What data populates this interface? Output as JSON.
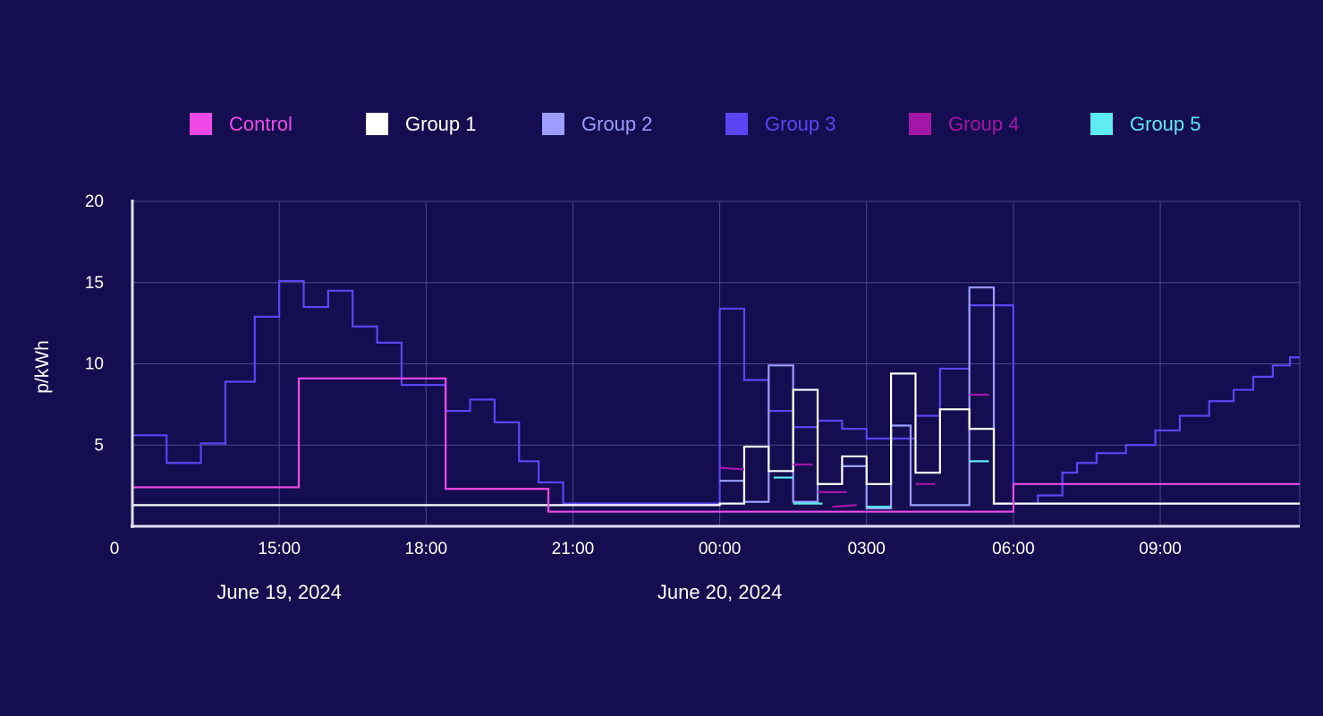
{
  "chart_data": {
    "type": "line",
    "step": true,
    "title": "",
    "xlabel": "",
    "ylabel": "p/kWh",
    "ylim": [
      0,
      20
    ],
    "xlim": [
      12.0,
      35.85
    ],
    "x_unit": "hours since 00:00 June 19, 2024",
    "y_ticks": [
      {
        "value": 0,
        "label": "0"
      },
      {
        "value": 5,
        "label": "5"
      },
      {
        "value": 10,
        "label": "10"
      },
      {
        "value": 15,
        "label": "15"
      },
      {
        "value": 20,
        "label": "20"
      }
    ],
    "x_ticks": [
      {
        "value": 15,
        "label": "15:00"
      },
      {
        "value": 18,
        "label": "18:00"
      },
      {
        "value": 21,
        "label": "21:00"
      },
      {
        "value": 24,
        "label": "00:00"
      },
      {
        "value": 27,
        "label": "0300"
      },
      {
        "value": 30,
        "label": "06:00"
      },
      {
        "value": 33,
        "label": "09:00"
      }
    ],
    "date_labels": [
      {
        "value": 15,
        "label": "June 19, 2024"
      },
      {
        "value": 24,
        "label": "June 20, 2024"
      }
    ],
    "legend_position": "top",
    "series": [
      {
        "name": "Group 3",
        "color": "#5b45f5",
        "x": [
          12.0,
          12.7,
          13.4,
          13.9,
          14.5,
          15.0,
          15.5,
          16.0,
          16.5,
          17.0,
          17.5,
          18.4,
          18.9,
          19.4,
          19.9,
          20.3,
          20.8,
          21.5,
          24.0,
          24.5,
          25.0,
          25.5,
          26.0,
          26.5,
          27.0,
          27.5,
          28.0,
          28.5,
          29.1,
          30.0,
          30.5,
          31.0,
          31.3,
          31.7,
          32.3,
          32.9,
          33.4,
          34.0,
          34.5,
          34.9,
          35.3,
          35.65,
          35.85
        ],
        "y": [
          5.6,
          3.9,
          5.1,
          8.9,
          12.9,
          15.1,
          13.5,
          14.5,
          12.3,
          11.3,
          8.7,
          7.1,
          7.8,
          6.4,
          4.0,
          2.7,
          1.4,
          1.4,
          13.4,
          9.0,
          7.1,
          6.1,
          6.5,
          6.0,
          5.4,
          5.4,
          6.8,
          9.7,
          13.6,
          1.4,
          1.9,
          3.3,
          3.9,
          4.5,
          5.0,
          5.9,
          6.8,
          7.7,
          8.4,
          9.2,
          9.9,
          10.4,
          10.4
        ]
      },
      {
        "name": "Group 2",
        "color": "#9b9dff",
        "x": [
          24.0,
          24.5,
          24.9,
          25.0,
          25.5,
          26.0,
          26.5,
          27.0,
          27.5,
          27.9,
          28.0,
          28.5,
          29.1,
          29.6,
          35.85
        ],
        "y": [
          2.8,
          1.5,
          1.5,
          9.9,
          1.5,
          2.6,
          3.7,
          1.1,
          6.2,
          1.3,
          1.3,
          1.3,
          14.7,
          1.4,
          1.4
        ]
      },
      {
        "name": "Group 1",
        "color": "#ffffff",
        "x": [
          12.0,
          24.0,
          24.5,
          25.0,
          25.5,
          26.0,
          26.5,
          27.0,
          27.5,
          28.0,
          28.5,
          29.1,
          29.6,
          35.85
        ],
        "y": [
          1.3,
          1.4,
          4.9,
          3.4,
          8.4,
          2.6,
          4.3,
          2.6,
          9.4,
          3.3,
          7.2,
          6.0,
          1.4,
          1.4
        ]
      },
      {
        "name": "Group 5",
        "color": "#5cecf2",
        "x": [
          25.1,
          25.5,
          25.5,
          26.1,
          27.0,
          27.5,
          29.1,
          29.5
        ],
        "y": [
          3.0,
          3.0,
          1.4,
          1.4,
          1.2,
          1.2,
          4.0,
          4.0
        ],
        "segments": true
      },
      {
        "name": "Group 4",
        "color": "#a116a7",
        "x": [
          24.0,
          24.5,
          25.5,
          25.9,
          26.0,
          26.6,
          26.3,
          26.8,
          28.0,
          28.4,
          29.1,
          29.5
        ],
        "y": [
          3.6,
          3.5,
          3.8,
          3.8,
          2.1,
          2.1,
          1.2,
          1.3,
          2.6,
          2.6,
          8.1,
          8.1
        ],
        "segments": true
      },
      {
        "name": "Control",
        "color": "#ef4ae8",
        "x": [
          12.0,
          15.4,
          18.4,
          20.5,
          30.0,
          35.85
        ],
        "y": [
          2.4,
          9.1,
          2.3,
          0.9,
          2.6,
          2.6
        ]
      }
    ],
    "legend": [
      {
        "name": "Control",
        "color": "#ef4ae8"
      },
      {
        "name": "Group 1",
        "color": "#ffffff"
      },
      {
        "name": "Group 2",
        "color": "#9b9dff"
      },
      {
        "name": "Group 3",
        "color": "#5b45f5"
      },
      {
        "name": "Group 4",
        "color": "#a116a7"
      },
      {
        "name": "Group 5",
        "color": "#5cecf2"
      }
    ]
  }
}
